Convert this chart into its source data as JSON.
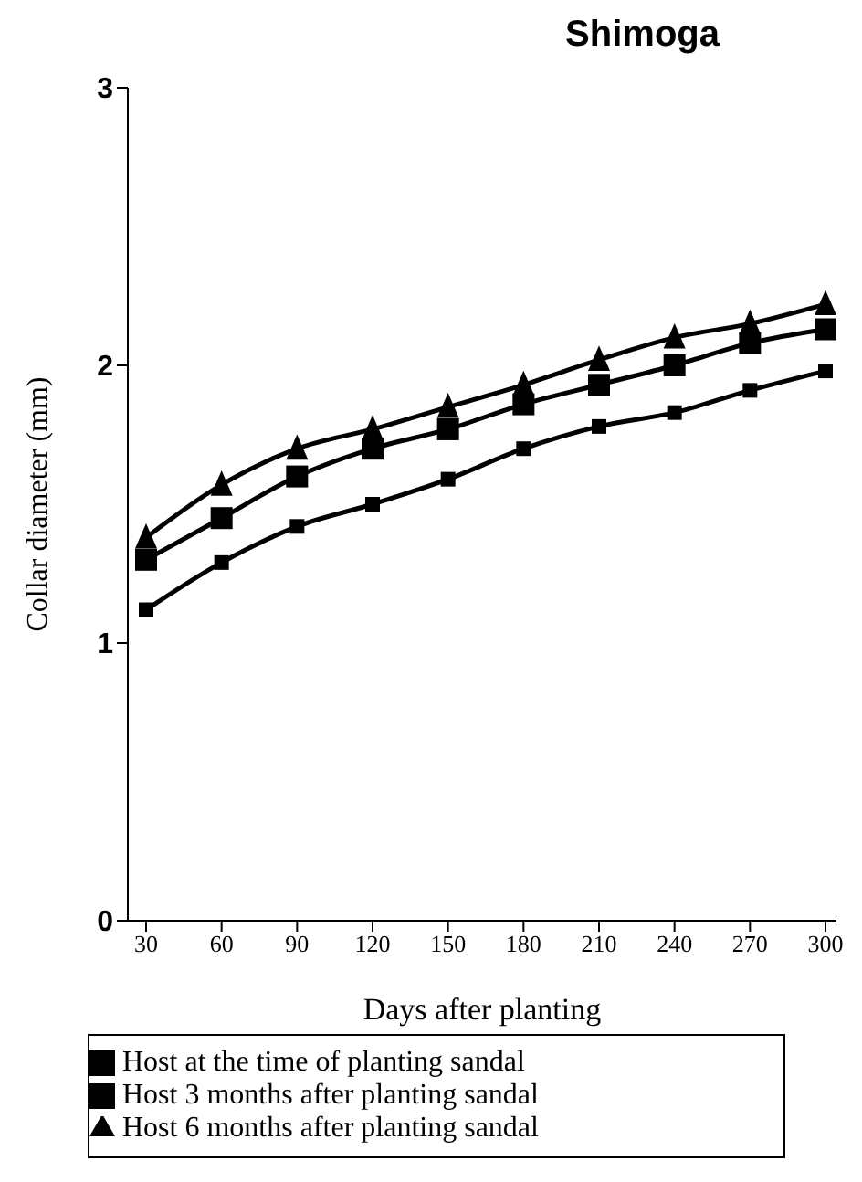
{
  "chart_data": {
    "type": "line",
    "title": "Shimoga",
    "xlabel": "Days after planting",
    "ylabel": "Collar diameter (mm)",
    "categories": [
      "30",
      "60",
      "90",
      "120",
      "150",
      "180",
      "210",
      "240",
      "270",
      "300"
    ],
    "ylim": [
      0,
      3
    ],
    "yticks": [
      0,
      1,
      2,
      3
    ],
    "grid": false,
    "legend": "bottom",
    "series": [
      {
        "name": "Host at the time of planting sandal",
        "color": "#000000",
        "marker": "square",
        "values": [
          1.12,
          1.29,
          1.42,
          1.5,
          1.59,
          1.7,
          1.78,
          1.83,
          1.91,
          1.98
        ]
      },
      {
        "name": "Host 3 months after planting sandal",
        "color": "#000000",
        "marker": "square",
        "values": [
          1.3,
          1.45,
          1.6,
          1.7,
          1.77,
          1.86,
          1.93,
          2.0,
          2.08,
          2.13
        ]
      },
      {
        "name": "Host 6 months after planting sandal",
        "color": "#000000",
        "marker": "triangle",
        "values": [
          1.38,
          1.57,
          1.7,
          1.77,
          1.85,
          1.93,
          2.02,
          2.1,
          2.15,
          2.22
        ]
      }
    ]
  }
}
